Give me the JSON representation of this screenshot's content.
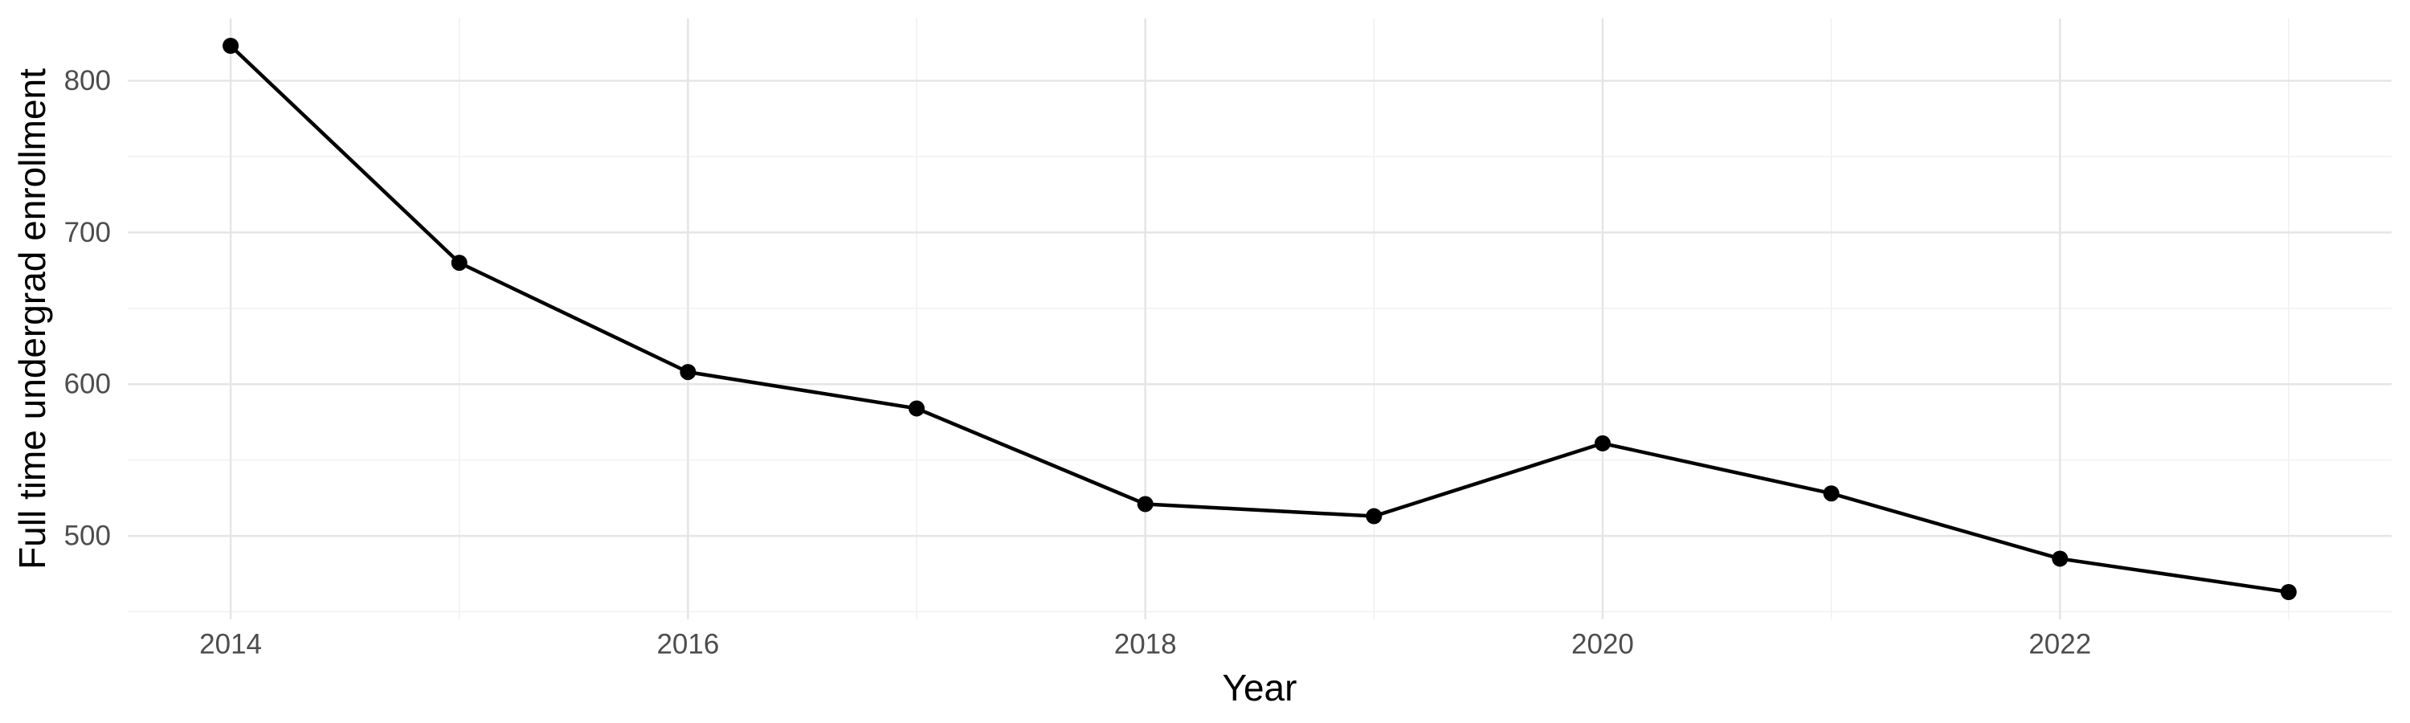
{
  "chart_data": {
    "type": "line",
    "title": "",
    "xlabel": "Year",
    "ylabel": "Full time undergrad enrollment",
    "series": [
      {
        "name": "Full time undergrad enrollment",
        "x": [
          2014,
          2015,
          2016,
          2017,
          2018,
          2019,
          2020,
          2021,
          2022,
          2023
        ],
        "y": [
          823,
          680,
          608,
          584,
          521,
          513,
          561,
          528,
          485,
          463
        ]
      }
    ],
    "xlim": [
      2013.55,
      2023.45
    ],
    "ylim": [
      445,
      841
    ],
    "x_major_ticks": [
      2014,
      2016,
      2018,
      2020,
      2022
    ],
    "x_minor_ticks": [
      2015,
      2017,
      2019,
      2021,
      2023
    ],
    "y_major_ticks": [
      500,
      600,
      700,
      800
    ],
    "y_minor_ticks": [
      450,
      550,
      650,
      750
    ],
    "grid": "major+minor",
    "legend": "none",
    "colors": {
      "line": "#000000",
      "point": "#000000",
      "grid_major": "#e5e5e5",
      "grid_minor": "#f0f0f0",
      "tick_text": "#4d4d4d",
      "axis_title_text": "#000000",
      "background": "#ffffff"
    },
    "point_radius": 10,
    "line_width": 4.5
  }
}
